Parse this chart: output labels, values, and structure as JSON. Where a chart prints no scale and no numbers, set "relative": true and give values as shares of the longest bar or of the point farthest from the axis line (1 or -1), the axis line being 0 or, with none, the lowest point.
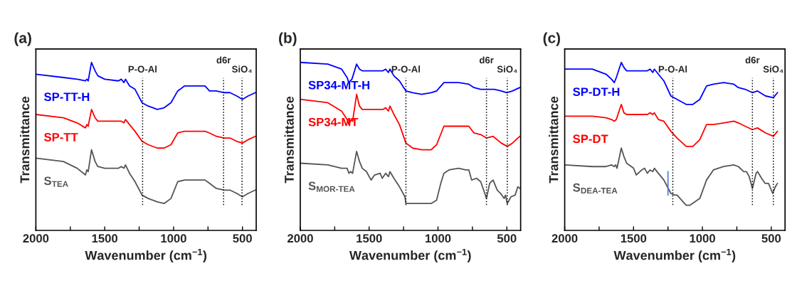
{
  "chart_data": [
    {
      "type": "line",
      "title": "(a)",
      "xlabel": "Wavenumber (cm$^{−1}$)",
      "ylabel": "Transmittance",
      "relative": true,
      "xlim": [
        2000,
        400
      ],
      "xticks": [
        2000,
        {
          "value": 1750,
          "label": null
        },
        1500,
        {
          "value": 1250,
          "label": null
        },
        1000,
        {
          "value": 750,
          "label": null
        },
        500
      ],
      "grid": false,
      "legend": false,
      "x": [
        2000,
        1800,
        1700,
        1640,
        1630,
        1620,
        1596,
        1570,
        1550,
        1500,
        1400,
        1380,
        1360,
        1349,
        1320,
        1280,
        1229,
        1184,
        1118,
        1069,
        1019,
        970,
        920,
        846,
        772,
        739,
        690,
        632,
        591,
        541,
        500,
        459,
        406
      ],
      "series": [
        {
          "name": "SP-TT-H",
          "color": "#0000ff",
          "values": [
            0.93,
            0.91,
            0.9,
            0.89,
            0.9,
            0.89,
            1.0,
            0.95,
            0.92,
            0.9,
            0.89,
            0.9,
            0.88,
            0.9,
            0.86,
            0.84,
            0.76,
            0.74,
            0.72,
            0.73,
            0.76,
            0.83,
            0.86,
            0.86,
            0.86,
            0.83,
            0.83,
            0.82,
            0.82,
            0.8,
            0.78,
            0.8,
            0.82
          ]
        },
        {
          "name": "SP-TT",
          "color": "#ff0000",
          "values": [
            0.69,
            0.67,
            0.64,
            0.61,
            0.63,
            0.62,
            0.72,
            0.67,
            0.65,
            0.65,
            0.65,
            0.65,
            0.64,
            0.66,
            0.63,
            0.59,
            0.53,
            0.51,
            0.49,
            0.49,
            0.51,
            0.58,
            0.59,
            0.59,
            0.59,
            0.58,
            0.56,
            0.55,
            0.55,
            0.53,
            0.52,
            0.54,
            0.56
          ]
        },
        {
          "name": "S$_{TEA}$",
          "color": "#555555",
          "values": [
            0.43,
            0.41,
            0.37,
            0.33,
            0.36,
            0.35,
            0.48,
            0.41,
            0.38,
            0.37,
            0.37,
            0.38,
            0.37,
            0.39,
            0.34,
            0.29,
            0.21,
            0.19,
            0.17,
            0.16,
            0.19,
            0.29,
            0.3,
            0.3,
            0.3,
            0.28,
            0.25,
            0.24,
            0.24,
            0.22,
            0.2,
            0.22,
            0.24
          ]
        }
      ],
      "ref_lines": [
        {
          "axis": "x",
          "value": 1225,
          "label": "P-O-Al",
          "line_style": "dotted",
          "color": "#000000"
        },
        {
          "axis": "x",
          "value": 637,
          "label": "d6r",
          "line_style": "dotted",
          "color": "#000000"
        },
        {
          "axis": "x",
          "value": 503,
          "label": "SiO₄",
          "line_style": "dotted",
          "color": "#000000"
        }
      ]
    },
    {
      "type": "line",
      "title": "(b)",
      "xlabel": "Wavenumber (cm$^{−1}$)",
      "ylabel": "Transmittance",
      "relative": true,
      "xlim": [
        2000,
        400
      ],
      "xticks": [
        2000,
        {
          "value": 1750,
          "label": null
        },
        1500,
        {
          "value": 1250,
          "label": null
        },
        1000,
        {
          "value": 750,
          "label": null
        },
        500
      ],
      "grid": false,
      "legend": false,
      "series": [
        {
          "name": "SP34-MT-H",
          "color": "#0000ff",
          "x": [
            2000,
            1800,
            1700,
            1660,
            1647,
            1625,
            1591,
            1570,
            1550,
            1500,
            1400,
            1380,
            1360,
            1349,
            1320,
            1280,
            1233,
            1184,
            1118,
            1050,
            1010,
            957,
            924,
            850,
            776,
            739,
            690,
            648,
            591,
            541,
            500,
            459,
            406
          ],
          "values": [
            1.0,
            0.99,
            0.96,
            0.91,
            0.88,
            0.9,
            0.99,
            0.96,
            0.95,
            0.95,
            0.95,
            0.96,
            0.94,
            0.96,
            0.92,
            0.89,
            0.83,
            0.82,
            0.81,
            0.82,
            0.83,
            0.88,
            0.88,
            0.88,
            0.87,
            0.85,
            0.84,
            0.84,
            0.84,
            0.83,
            0.82,
            0.83,
            0.85
          ]
        },
        {
          "name": "SP34-MT",
          "color": "#ff0000",
          "x": [
            2000,
            1800,
            1700,
            1660,
            1647,
            1630,
            1620,
            1591,
            1570,
            1550,
            1500,
            1400,
            1380,
            1360,
            1349,
            1320,
            1280,
            1233,
            1184,
            1118,
            1050,
            1010,
            957,
            924,
            850,
            776,
            739,
            690,
            648,
            600,
            541,
            497,
            459,
            406
          ],
          "values": [
            0.78,
            0.76,
            0.71,
            0.66,
            0.63,
            0.66,
            0.65,
            0.81,
            0.74,
            0.72,
            0.72,
            0.72,
            0.73,
            0.71,
            0.74,
            0.69,
            0.63,
            0.52,
            0.49,
            0.48,
            0.48,
            0.51,
            0.62,
            0.62,
            0.62,
            0.62,
            0.58,
            0.57,
            0.55,
            0.56,
            0.52,
            0.5,
            0.52,
            0.56
          ]
        },
        {
          "name": "S$_{MOR-TEA}$",
          "color": "#555555",
          "x": [
            2000,
            1800,
            1700,
            1660,
            1647,
            1635,
            1620,
            1591,
            1570,
            1550,
            1520,
            1486,
            1460,
            1420,
            1405,
            1380,
            1360,
            1349,
            1320,
            1280,
            1240,
            1233,
            1200,
            1150,
            1050,
            1010,
            980,
            957,
            920,
            850,
            800,
            776,
            756,
            720,
            690,
            660,
            648,
            625,
            600,
            570,
            545,
            520,
            510,
            497,
            470,
            440,
            420,
            406
          ],
          "values": [
            0.4,
            0.39,
            0.37,
            0.37,
            0.34,
            0.35,
            0.34,
            0.47,
            0.41,
            0.37,
            0.35,
            0.3,
            0.33,
            0.34,
            0.31,
            0.34,
            0.32,
            0.35,
            0.31,
            0.26,
            0.2,
            0.16,
            0.16,
            0.16,
            0.16,
            0.18,
            0.28,
            0.34,
            0.36,
            0.37,
            0.36,
            0.36,
            0.3,
            0.31,
            0.29,
            0.22,
            0.19,
            0.28,
            0.3,
            0.24,
            0.22,
            0.19,
            0.21,
            0.16,
            0.2,
            0.21,
            0.26,
            0.25
          ]
        }
      ],
      "ref_lines": [
        {
          "axis": "x",
          "value": 1233,
          "label": "P-O-Al",
          "line_style": "dotted",
          "color": "#000000"
        },
        {
          "axis": "x",
          "value": 648,
          "label": "d6r",
          "line_style": "dotted",
          "color": "#000000"
        },
        {
          "axis": "x",
          "value": 497,
          "label": "SiO₄",
          "line_style": "dotted",
          "color": "#000000"
        }
      ]
    },
    {
      "type": "line",
      "title": "(c)",
      "xlabel": "Wavenumber (cm$^{−1}$)",
      "ylabel": "Transmittance",
      "relative": true,
      "xlim": [
        2000,
        400
      ],
      "xticks": [
        2000,
        {
          "value": 1750,
          "label": null
        },
        1500,
        {
          "value": 1250,
          "label": null
        },
        1000,
        {
          "value": 750,
          "label": null
        },
        500
      ],
      "grid": false,
      "legend": false,
      "series": [
        {
          "name": "SP-DT-H",
          "color": "#0000ff",
          "x": [
            2000,
            1800,
            1700,
            1660,
            1640,
            1625,
            1589,
            1570,
            1550,
            1500,
            1400,
            1380,
            1360,
            1349,
            1320,
            1280,
            1229,
            1184,
            1118,
            1069,
            1019,
            970,
            920,
            846,
            772,
            739,
            690,
            637,
            600,
            541,
            485,
            455
          ],
          "values": [
            0.96,
            0.96,
            0.93,
            0.9,
            0.88,
            0.91,
            1.0,
            0.97,
            0.95,
            0.95,
            0.95,
            0.96,
            0.94,
            0.96,
            0.93,
            0.89,
            0.8,
            0.78,
            0.75,
            0.75,
            0.78,
            0.86,
            0.87,
            0.88,
            0.87,
            0.85,
            0.84,
            0.82,
            0.83,
            0.8,
            0.79,
            0.82
          ]
        },
        {
          "name": "SP-DT",
          "color": "#ff0000",
          "x": [
            2000,
            1800,
            1700,
            1660,
            1640,
            1625,
            1589,
            1570,
            1550,
            1500,
            1400,
            1380,
            1360,
            1349,
            1320,
            1280,
            1229,
            1184,
            1118,
            1069,
            1019,
            970,
            920,
            846,
            772,
            739,
            690,
            637,
            600,
            541,
            485,
            455
          ],
          "values": [
            0.68,
            0.68,
            0.67,
            0.66,
            0.65,
            0.66,
            0.75,
            0.7,
            0.69,
            0.69,
            0.69,
            0.7,
            0.69,
            0.7,
            0.66,
            0.65,
            0.59,
            0.55,
            0.5,
            0.5,
            0.54,
            0.63,
            0.63,
            0.64,
            0.65,
            0.64,
            0.62,
            0.6,
            0.61,
            0.58,
            0.56,
            0.59
          ]
        },
        {
          "name": "S$_{DEA-TEA}$",
          "color": "#555555",
          "x": [
            2000,
            1800,
            1700,
            1660,
            1640,
            1630,
            1620,
            1589,
            1570,
            1550,
            1500,
            1480,
            1440,
            1420,
            1400,
            1380,
            1360,
            1349,
            1320,
            1280,
            1229,
            1200,
            1184,
            1118,
            1090,
            1019,
            970,
            920,
            846,
            772,
            739,
            700,
            680,
            660,
            637,
            610,
            600,
            570,
            545,
            520,
            490,
            470,
            455
          ],
          "values": [
            0.39,
            0.38,
            0.38,
            0.39,
            0.38,
            0.39,
            0.37,
            0.49,
            0.44,
            0.4,
            0.37,
            0.33,
            0.36,
            0.37,
            0.34,
            0.36,
            0.35,
            0.37,
            0.34,
            0.3,
            0.22,
            0.21,
            0.21,
            0.15,
            0.15,
            0.19,
            0.3,
            0.36,
            0.38,
            0.39,
            0.38,
            0.35,
            0.35,
            0.32,
            0.25,
            0.34,
            0.35,
            0.31,
            0.28,
            0.28,
            0.22,
            0.26,
            0.28
          ]
        },
        {
          "color": "#5b7fd6",
          "x": [
            1250,
            1250
          ],
          "values": [
            0.35,
            0.21
          ]
        }
      ],
      "ref_lines": [
        {
          "axis": "x",
          "value": 1215,
          "label": "P-O-Al",
          "line_style": "dotted",
          "color": "#000000"
        },
        {
          "axis": "x",
          "value": 637,
          "label": "d6r",
          "line_style": "dotted",
          "color": "#000000"
        },
        {
          "axis": "x",
          "value": 485,
          "label": "SiO₄",
          "line_style": "dotted",
          "color": "#000000"
        }
      ]
    }
  ]
}
